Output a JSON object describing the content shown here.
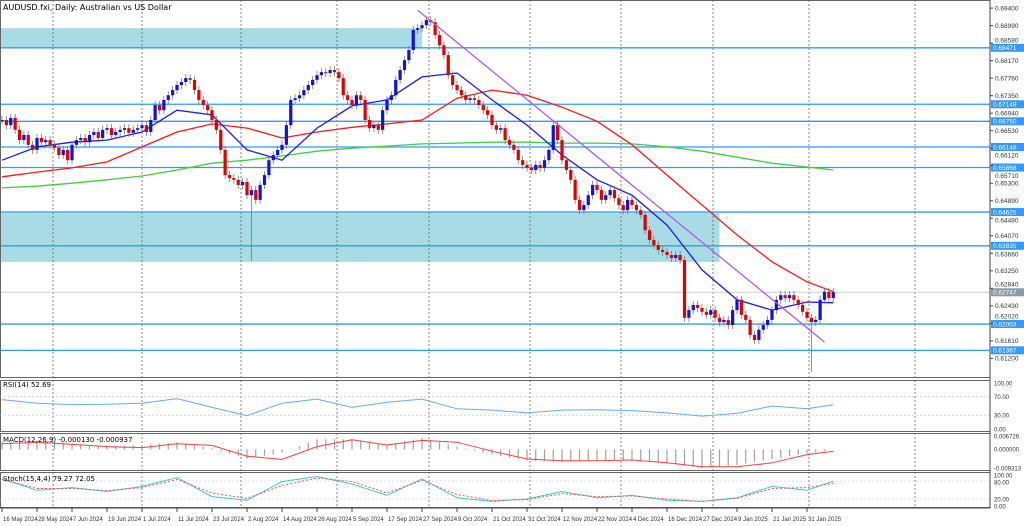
{
  "window": {
    "title": "AUDUSD.fxi, Daily: Australian vs US Dollar"
  },
  "colors": {
    "bull": "#1010e0",
    "bear": "#e00000",
    "ma_fast": "#1a1aff",
    "ma_mid": "#ff1a1a",
    "ma_slow": "#44cc44",
    "level": "#3399ff",
    "zone": "#a8dbe4",
    "trendline": "#b05be0",
    "current_price": "#8a99a6",
    "rsi": "#66aaff",
    "macd_hist": "#a0a0a0",
    "macd_signal": "#ff4040",
    "stoch_k": "#40c8c8",
    "stoch_d": "#ff5050"
  },
  "chart_data": [
    {
      "type": "candlestick",
      "title": "AUDUSD.fxi, Daily: Australian vs US Dollar",
      "ylim": [
        0.6074,
        0.6959
      ],
      "grid": "vertical dotted",
      "x_tick_labels": [
        "16 May 2024",
        "28 May 2024",
        "7 Jun 2024",
        "19 Jun 2024",
        "1 Jul 2024",
        "11 Jul 2024",
        "23 Jul 2024",
        "2 Aug 2024",
        "14 Aug 2024",
        "26 Aug 2024",
        "5 Sep 2024",
        "17 Sep 2024",
        "27 Sep 2024",
        "9 Oct 2024",
        "21 Oct 2024",
        "31 Oct 2024",
        "12 Nov 2024",
        "22 Nov 2024",
        "4 Dec 2024",
        "16 Dec 2024",
        "27 Dec 2024",
        "9 Jan 2025",
        "21 Jan 2025",
        "31 Jan 2025"
      ],
      "y_tick_labels": [
        "0.69400",
        "0.68990",
        "0.68580",
        "0.68170",
        "0.67760",
        "0.67350",
        "0.66940",
        "0.66530",
        "0.66120",
        "0.65710",
        "0.65300",
        "0.64890",
        "0.64480",
        "0.64070",
        "0.63660",
        "0.63250",
        "0.62840",
        "0.62430",
        "0.62020",
        "0.61610",
        "0.61200"
      ],
      "closes": [
        0.6678,
        0.6666,
        0.6683,
        0.6655,
        0.6631,
        0.6643,
        0.662,
        0.6608,
        0.6636,
        0.6626,
        0.6631,
        0.662,
        0.6613,
        0.6596,
        0.6608,
        0.6584,
        0.662,
        0.6631,
        0.6636,
        0.6626,
        0.6643,
        0.665,
        0.6636,
        0.6655,
        0.6659,
        0.6643,
        0.665,
        0.6655,
        0.6659,
        0.6648,
        0.6655,
        0.6659,
        0.6666,
        0.665,
        0.6678,
        0.6713,
        0.6701,
        0.6725,
        0.6736,
        0.6748,
        0.676,
        0.6767,
        0.6776,
        0.6772,
        0.6748,
        0.6725,
        0.6713,
        0.6701,
        0.6678,
        0.6655,
        0.6608,
        0.6549,
        0.6542,
        0.6538,
        0.6526,
        0.6533,
        0.6502,
        0.6514,
        0.6491,
        0.6526,
        0.6549,
        0.6584,
        0.6596,
        0.6608,
        0.662,
        0.6666,
        0.6725,
        0.6729,
        0.6736,
        0.6748,
        0.676,
        0.6772,
        0.6783,
        0.679,
        0.6788,
        0.6795,
        0.679,
        0.6776,
        0.6736,
        0.6725,
        0.6713,
        0.6736,
        0.6725,
        0.6678,
        0.6659,
        0.6666,
        0.6655,
        0.6701,
        0.6725,
        0.6736,
        0.6772,
        0.6795,
        0.6818,
        0.6842,
        0.6889,
        0.6893,
        0.69,
        0.6912,
        0.6907,
        0.6877,
        0.6853,
        0.683,
        0.6783,
        0.676,
        0.6748,
        0.6736,
        0.6725,
        0.6729,
        0.6725,
        0.6713,
        0.6701,
        0.669,
        0.6666,
        0.6655,
        0.6659,
        0.6631,
        0.662,
        0.6608,
        0.6584,
        0.6573,
        0.6566,
        0.6561,
        0.6573,
        0.6566,
        0.6584,
        0.6608,
        0.6666,
        0.6631,
        0.6584,
        0.6561,
        0.6538,
        0.6491,
        0.6467,
        0.6479,
        0.6502,
        0.6526,
        0.6514,
        0.6491,
        0.6502,
        0.6514,
        0.6495,
        0.6479,
        0.6467,
        0.6491,
        0.6479,
        0.6467,
        0.6456,
        0.642,
        0.6397,
        0.6385,
        0.6374,
        0.6369,
        0.6362,
        0.6355,
        0.6362,
        0.635,
        0.6215,
        0.6233,
        0.6245,
        0.6238,
        0.6229,
        0.6222,
        0.6233,
        0.6215,
        0.6205,
        0.621,
        0.6198,
        0.6233,
        0.6257,
        0.6222,
        0.621,
        0.6175,
        0.6163,
        0.6187,
        0.6198,
        0.621,
        0.6233,
        0.6257,
        0.6268,
        0.6261,
        0.6268,
        0.6257,
        0.6245,
        0.6229,
        0.6215,
        0.6205,
        0.621,
        0.6257,
        0.6276,
        0.6261,
        0.6275
      ],
      "notable_lows": [
        {
          "date": "5 Aug 2024",
          "low": 0.6348
        },
        {
          "date": "3 Feb 2025",
          "low": 0.6088
        }
      ],
      "moving_averages_at_ticks": {
        "fast": [
          0.6584,
          0.6615,
          0.6626,
          0.6631,
          0.665,
          0.6701,
          0.669,
          0.6608,
          0.6584,
          0.6659,
          0.6711,
          0.6725,
          0.6779,
          0.6788,
          0.6725,
          0.6666,
          0.6596,
          0.6538,
          0.6502,
          0.6432,
          0.6327,
          0.6257,
          0.6233,
          0.6252,
          0.625
        ],
        "mid": [
          0.6545,
          0.6556,
          0.6566,
          0.658,
          0.6615,
          0.665,
          0.6669,
          0.6659,
          0.6636,
          0.665,
          0.6661,
          0.6669,
          0.6678,
          0.6729,
          0.6748,
          0.6736,
          0.6708,
          0.6675,
          0.662,
          0.6549,
          0.6479,
          0.6409,
          0.6346,
          0.6299,
          0.6276
        ],
        "slow": [
          0.6519,
          0.6523,
          0.653,
          0.6538,
          0.6547,
          0.6561,
          0.6577,
          0.6584,
          0.6594,
          0.6605,
          0.6612,
          0.6617,
          0.6622,
          0.6624,
          0.6626,
          0.6626,
          0.6624,
          0.6624,
          0.6622,
          0.6615,
          0.6605,
          0.6591,
          0.6577,
          0.6568,
          0.6561
        ]
      },
      "levels": [
        "0.68471",
        "0.67149",
        "0.66750",
        "0.66148",
        "0.65668",
        "0.64625",
        "0.63835",
        "0.62003",
        "0.61387"
      ],
      "zones": [
        {
          "from": 0.6847,
          "to": 0.6893
        },
        {
          "from": 0.6346,
          "to": 0.646
        }
      ],
      "trendline": {
        "from": 0.6935,
        "to": 0.6158
      },
      "current_price": "0.62747"
    },
    {
      "type": "line",
      "label": "RSI(14) 52.69",
      "ylim": [
        0,
        100
      ],
      "y_tick_labels": [
        "100.00",
        "70.00",
        "30.00",
        "0.00"
      ],
      "values": [
        64,
        56,
        53,
        54,
        56,
        66,
        47,
        29,
        56,
        65,
        47,
        58,
        65,
        44,
        41,
        35,
        41,
        42,
        40,
        35,
        28,
        34,
        50,
        44,
        52.69
      ]
    },
    {
      "type": "bar+line",
      "label": "MACD(12,26,9) -0.000130 -0.000937",
      "ylim": [
        -0.009313,
        0.006726
      ],
      "y_tick_labels": [
        "0.006726",
        "0.000000",
        "-0.009313"
      ],
      "macd": [
        0.0036,
        0.0045,
        0.0029,
        0.0014,
        0.0022,
        0.0036,
        0.0006,
        -0.0048,
        -0.0017,
        0.0051,
        0.0051,
        0.0022,
        0.0059,
        0.0014,
        -0.0025,
        -0.0056,
        -0.0064,
        -0.0056,
        -0.0056,
        -0.0071,
        -0.0093,
        -0.0078,
        -0.0048,
        -0.002,
        -0.00013
      ],
      "signal": [
        0.0028,
        0.0036,
        0.0025,
        0.0014,
        0.0009,
        0.0028,
        0.002,
        -0.0034,
        -0.005,
        0.0014,
        0.0048,
        0.0022,
        0.0045,
        0.0036,
        -0.0009,
        -0.0048,
        -0.0057,
        -0.0057,
        -0.0053,
        -0.0067,
        -0.0087,
        -0.0087,
        -0.0067,
        -0.0026,
        -0.000937
      ]
    },
    {
      "type": "line",
      "label": "Stoch(15,4,4) 79.27 72.05",
      "ylim": [
        0,
        100
      ],
      "y_tick_labels": [
        "100.00",
        "80.00",
        "20.00",
        "0.00"
      ],
      "k": [
        87,
        49,
        58,
        45,
        62,
        91,
        28,
        16,
        78,
        95,
        70,
        32,
        87,
        24,
        12,
        20,
        45,
        24,
        32,
        16,
        12,
        24,
        62,
        49,
        79.27
      ],
      "d": [
        85,
        55,
        55,
        48,
        58,
        85,
        40,
        22,
        65,
        90,
        78,
        40,
        82,
        35,
        15,
        18,
        38,
        28,
        30,
        20,
        12,
        22,
        55,
        58,
        72.05
      ]
    }
  ]
}
